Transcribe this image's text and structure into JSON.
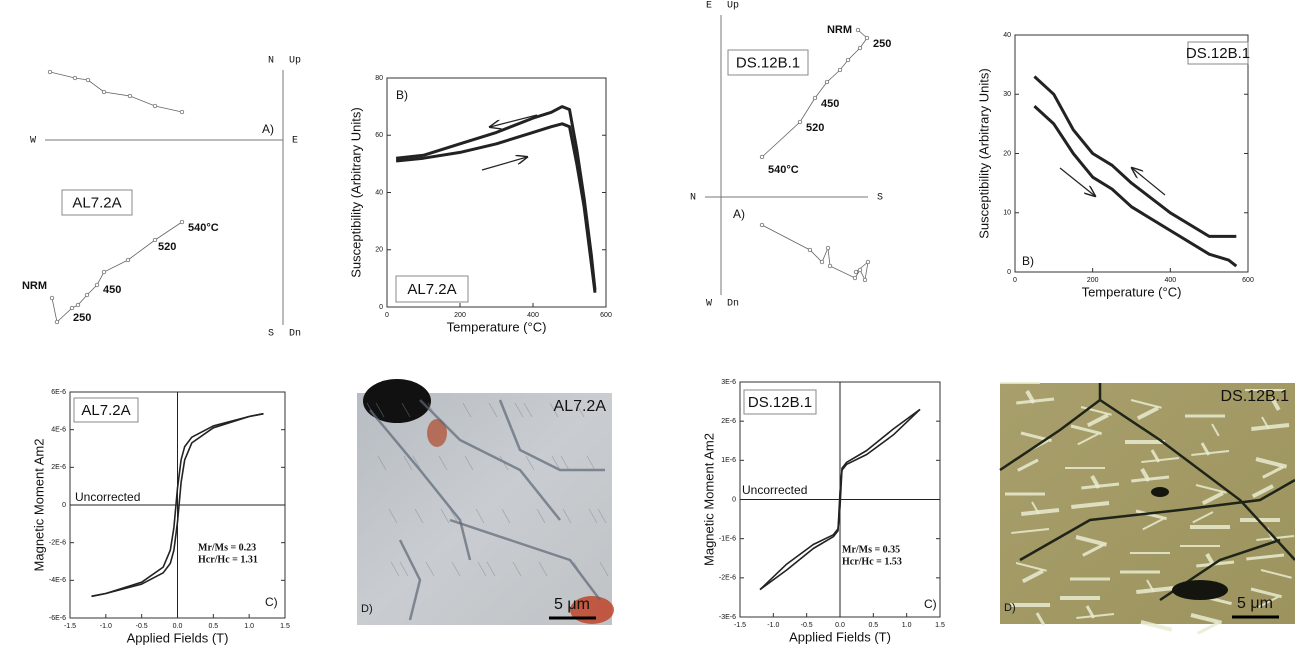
{
  "chart_data": [
    {
      "type": "zijderveld",
      "sample": "AL7.2A",
      "panel_label": "A)",
      "axis_labels": {
        "top": [
          "N",
          "Up"
        ],
        "left": "W",
        "right": "E",
        "bottom": [
          "S",
          "Dn"
        ]
      },
      "xlim": [
        -238,
        0
      ],
      "ylim": [
        -185,
        70
      ],
      "series": [
        {
          "x": [
            -233,
            -208,
            -195,
            -179,
            -153,
            -128,
            -101
          ],
          "values": [
            68,
            62,
            60,
            48,
            44,
            34,
            28
          ]
        },
        {
          "x": [
            -231,
            -226,
            -211,
            -205,
            -196,
            -186,
            -179,
            -155,
            -128,
            -101
          ],
          "values": [
            -158,
            -182,
            -168,
            -165,
            -155,
            -145,
            -132,
            -120,
            -100,
            -82
          ],
          "point_labels": [
            "NRM",
            "250",
            null,
            null,
            null,
            "450",
            null,
            null,
            "520",
            "540°C"
          ]
        }
      ]
    },
    {
      "type": "line",
      "panel_label": "B)",
      "sample": "AL7.2A",
      "x_label": "Temperature (°C)",
      "y_label": "Susceptibility (Arbitrary Units)",
      "xlim": [
        0,
        600
      ],
      "ylim": [
        0,
        80
      ],
      "xticks": [
        0,
        200,
        400,
        600
      ],
      "yticks": [
        0,
        20,
        40,
        60,
        80
      ],
      "x": [
        25,
        100,
        200,
        300,
        400,
        450,
        480,
        500,
        520,
        540,
        560,
        570
      ],
      "series": [
        {
          "color": "#222222",
          "values": [
            51,
            52,
            54,
            57,
            61,
            63,
            64,
            63,
            50,
            35,
            15,
            5
          ]
        },
        {
          "color": "#222222",
          "values": [
            52,
            53,
            57,
            61,
            66,
            68,
            70,
            69,
            55,
            38,
            18,
            6
          ]
        }
      ]
    },
    {
      "type": "zijderveld",
      "sample": "DS.12B.1",
      "panel_label": "A)",
      "axis_labels": {
        "top": [
          "E",
          "Up"
        ],
        "left": "N",
        "right": "S",
        "bottom": [
          "W",
          "Dn"
        ]
      },
      "xlim": [
        -16,
        147
      ],
      "ylim": [
        -98,
        182
      ],
      "series": [
        {
          "x": [
            137,
            146,
            139,
            127,
            119,
            106,
            94,
            79,
            41
          ],
          "values": [
            167,
            159,
            149,
            137,
            127,
            115,
            99,
            75,
            40
          ],
          "point_labels": [
            "NRM",
            "250",
            null,
            null,
            null,
            null,
            "450",
            "520",
            "540°C"
          ]
        },
        {
          "x": [
            41,
            89,
            101,
            107,
            109,
            134,
            139,
            144,
            147,
            135
          ],
          "values": [
            -28,
            -53,
            -65,
            -51,
            -69,
            -81,
            -73,
            -83,
            -65,
            -75
          ]
        }
      ]
    },
    {
      "type": "line",
      "panel_label": "B)",
      "sample": "DS.12B.1",
      "x_label": "Temperature (°C)",
      "y_label": "Susceptibility (Arbitrary Units)",
      "xlim": [
        0,
        600
      ],
      "ylim": [
        0,
        40
      ],
      "xticks": [
        0,
        200,
        400,
        600
      ],
      "yticks": [
        0,
        10,
        20,
        30,
        40
      ],
      "x": [
        50,
        100,
        150,
        200,
        250,
        300,
        400,
        500,
        550,
        570
      ],
      "series": [
        {
          "color": "#222222",
          "values": [
            33,
            30,
            24,
            20,
            18,
            15,
            10,
            6,
            6,
            6
          ]
        },
        {
          "color": "#222222",
          "values": [
            28,
            25,
            20,
            16,
            14,
            11,
            7,
            3,
            2,
            1
          ]
        }
      ]
    },
    {
      "type": "line",
      "panel_label": "C)",
      "sample": "AL7.2A",
      "zero_axes": true,
      "x_label": "Applied Fields (T)",
      "y_label": "Magnetic Moment Am2",
      "notes": [
        "Uncorrected",
        "Mr/Ms = 0.23",
        "Hcr/Hc = 1.31"
      ],
      "xlim": [
        -1.5,
        1.5
      ],
      "ylim": [
        -6e-06,
        6e-06
      ],
      "xticks": [
        -1.5,
        {
          "value": -1,
          "label": "-1.0"
        },
        -0.5,
        {
          "value": 0,
          "label": "0.0"
        },
        0.5,
        {
          "value": 1,
          "label": "1.0"
        },
        1.5
      ],
      "yticks": [
        {
          "value": -6e-06,
          "label": "-6E-6"
        },
        {
          "value": -4e-06,
          "label": "-4E-6"
        },
        {
          "value": -2e-06,
          "label": "-2E-6"
        },
        0,
        {
          "value": 2e-06,
          "label": "2E-6"
        },
        {
          "value": 4e-06,
          "label": "4E-6"
        },
        {
          "value": 6e-06,
          "label": "6E-6"
        }
      ],
      "x": [
        -1.2,
        -1,
        -0.5,
        -0.2,
        -0.1,
        -0.05,
        0,
        0.05,
        0.1,
        0.2,
        0.5,
        1,
        1.2
      ],
      "series": [
        {
          "color": "#222222",
          "values": [
            -4.85e-06,
            -4.7e-06,
            -4.1e-06,
            -3.3e-06,
            -2.4e-06,
            -1.2e-06,
            9e-07,
            2.4e-06,
            3.1e-06,
            3.6e-06,
            4.2e-06,
            4.7e-06,
            4.85e-06
          ]
        },
        {
          "color": "#222222",
          "values": [
            -4.85e-06,
            -4.7e-06,
            -4.2e-06,
            -3.6e-06,
            -3.1e-06,
            -2.4e-06,
            -9e-07,
            1.2e-06,
            2.4e-06,
            3.3e-06,
            4.1e-06,
            4.7e-06,
            4.85e-06
          ]
        }
      ]
    },
    {
      "type": "image",
      "sample": "AL7.2A",
      "panel_label": "D)",
      "scale_bar": "5 μm"
    },
    {
      "type": "line",
      "panel_label": "C)",
      "sample": "DS.12B.1",
      "zero_axes": true,
      "x_label": "Applied Fields (T)",
      "y_label": "Magnetic Moment Am2",
      "notes": [
        "Uncorrected",
        "Mr/Ms = 0.35",
        "Hcr/Hc = 1.53"
      ],
      "xlim": [
        -1.5,
        1.5
      ],
      "ylim": [
        -3e-06,
        3e-06
      ],
      "xticks": [
        -1.5,
        {
          "value": -1,
          "label": "-1.0"
        },
        -0.5,
        {
          "value": 0,
          "label": "0.0"
        },
        0.5,
        {
          "value": 1,
          "label": "1.0"
        },
        1.5
      ],
      "yticks": [
        {
          "value": -3e-06,
          "label": "-3E-6"
        },
        {
          "value": -2e-06,
          "label": "-2E-6"
        },
        {
          "value": -1e-06,
          "label": "-1E-6"
        },
        0,
        {
          "value": 1e-06,
          "label": "1E-6"
        },
        {
          "value": 2e-06,
          "label": "2E-6"
        },
        {
          "value": 3e-06,
          "label": "3E-6"
        }
      ],
      "x": [
        -1.2,
        -0.8,
        -0.4,
        -0.1,
        -0.03,
        0,
        0.03,
        0.1,
        0.4,
        0.8,
        1.2
      ],
      "series": [
        {
          "color": "#222222",
          "values": [
            -2.3e-06,
            -1.8e-06,
            -1.25e-06,
            -9.5e-07,
            -8e-07,
            2e-07,
            7.5e-07,
            9e-07,
            1.15e-06,
            1.65e-06,
            2.3e-06
          ]
        },
        {
          "color": "#222222",
          "values": [
            -2.3e-06,
            -1.65e-06,
            -1.15e-06,
            -9e-07,
            -7.5e-07,
            -2e-07,
            8e-07,
            9.5e-07,
            1.25e-06,
            1.8e-06,
            2.3e-06
          ]
        }
      ]
    },
    {
      "type": "image",
      "sample": "DS.12B.1",
      "panel_label": "D)",
      "scale_bar": "5 μm"
    }
  ]
}
